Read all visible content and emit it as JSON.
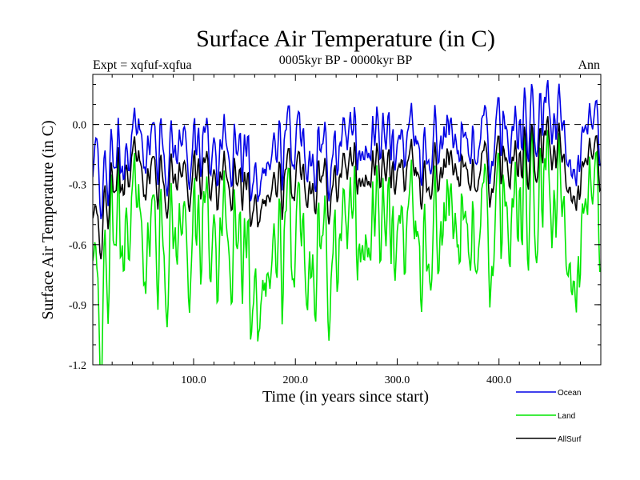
{
  "chart_data": {
    "type": "line",
    "title": "Surface Air Temperature (in C)",
    "subtitle_left": "Expt = xqfuf-xqfua",
    "subtitle_center": "0005kyr BP - 0000kyr BP",
    "subtitle_right": "Ann",
    "xlabel": "Time (in years since start)",
    "ylabel": "Surface Air Temperature (in C)",
    "xlim": [
      1,
      500
    ],
    "ylim": [
      -1.2,
      0.25
    ],
    "x_ticks": [
      100,
      200,
      300,
      400
    ],
    "x_tick_labels": [
      "100.0",
      "200.0",
      "300.0",
      "400.0"
    ],
    "y_ticks": [
      0.0,
      -0.3,
      -0.6,
      -0.9,
      -1.2
    ],
    "y_tick_labels": [
      "0.0",
      "-0.3",
      "-0.6",
      "-0.9",
      "-1.2"
    ],
    "reference_line": 0.0,
    "series": [
      {
        "name": "Land",
        "color": "#00e600",
        "anchors_x": [
          1,
          5,
          12,
          20,
          30,
          40,
          50,
          60,
          70,
          80,
          90,
          100,
          110,
          120,
          130,
          140,
          150,
          160,
          170,
          180,
          190,
          200,
          210,
          220,
          230,
          240,
          250,
          260,
          270,
          280,
          290,
          300,
          310,
          320,
          330,
          340,
          350,
          360,
          370,
          380,
          390,
          400,
          410,
          420,
          430,
          440,
          450,
          460,
          470,
          480,
          490,
          500
        ],
        "anchors_y": [
          -0.75,
          -0.95,
          -0.85,
          -0.6,
          -0.5,
          -0.45,
          -0.5,
          -0.55,
          -0.6,
          -0.5,
          -0.55,
          -0.6,
          -0.5,
          -0.55,
          -0.6,
          -0.55,
          -0.65,
          -0.7,
          -0.75,
          -0.7,
          -0.6,
          -0.55,
          -0.5,
          -0.55,
          -0.6,
          -0.55,
          -0.5,
          -0.45,
          -0.5,
          -0.55,
          -0.6,
          -0.5,
          -0.55,
          -0.6,
          -0.55,
          -0.5,
          -0.45,
          -0.5,
          -0.55,
          -0.6,
          -0.55,
          -0.5,
          -0.5,
          -0.45,
          -0.5,
          -0.4,
          -0.35,
          -0.45,
          -0.55,
          -0.6,
          -0.5,
          -0.45
        ]
      },
      {
        "name": "AllSurf",
        "color": "#000000",
        "anchors_x": [
          1,
          5,
          12,
          20,
          30,
          40,
          50,
          60,
          70,
          80,
          90,
          100,
          110,
          120,
          130,
          140,
          150,
          160,
          170,
          180,
          190,
          200,
          210,
          220,
          230,
          240,
          250,
          260,
          270,
          280,
          290,
          300,
          310,
          320,
          330,
          340,
          350,
          360,
          370,
          380,
          390,
          400,
          410,
          420,
          430,
          440,
          450,
          460,
          470,
          480,
          490,
          500
        ],
        "anchors_y": [
          -0.5,
          -0.55,
          -0.45,
          -0.35,
          -0.25,
          -0.2,
          -0.22,
          -0.25,
          -0.28,
          -0.24,
          -0.26,
          -0.28,
          -0.24,
          -0.27,
          -0.3,
          -0.27,
          -0.32,
          -0.34,
          -0.36,
          -0.33,
          -0.3,
          -0.26,
          -0.22,
          -0.25,
          -0.28,
          -0.26,
          -0.22,
          -0.2,
          -0.23,
          -0.25,
          -0.28,
          -0.22,
          -0.24,
          -0.27,
          -0.25,
          -0.22,
          -0.2,
          -0.22,
          -0.25,
          -0.27,
          -0.25,
          -0.22,
          -0.22,
          -0.2,
          -0.22,
          -0.15,
          -0.1,
          -0.18,
          -0.25,
          -0.28,
          -0.22,
          -0.2
        ]
      },
      {
        "name": "Ocean",
        "color": "#0000e6",
        "anchors_x": [
          1,
          5,
          12,
          20,
          30,
          40,
          50,
          60,
          70,
          80,
          90,
          100,
          110,
          120,
          130,
          140,
          150,
          160,
          170,
          180,
          190,
          200,
          210,
          220,
          230,
          240,
          250,
          260,
          270,
          280,
          290,
          300,
          310,
          320,
          330,
          340,
          350,
          360,
          370,
          380,
          390,
          400,
          410,
          420,
          430,
          440,
          450,
          460,
          470,
          480,
          490,
          500
        ],
        "anchors_y": [
          -0.3,
          -0.2,
          -0.3,
          -0.22,
          -0.15,
          -0.1,
          -0.05,
          -0.1,
          -0.12,
          -0.1,
          -0.1,
          -0.15,
          -0.1,
          -0.12,
          -0.15,
          -0.12,
          -0.15,
          -0.18,
          -0.2,
          -0.15,
          -0.12,
          -0.08,
          -0.05,
          -0.1,
          -0.12,
          -0.1,
          -0.06,
          -0.05,
          -0.08,
          -0.1,
          -0.12,
          -0.08,
          -0.1,
          -0.12,
          -0.1,
          -0.06,
          -0.05,
          -0.08,
          -0.1,
          -0.12,
          -0.1,
          -0.06,
          -0.08,
          -0.05,
          -0.06,
          0.0,
          0.05,
          -0.02,
          -0.1,
          -0.12,
          -0.08,
          -0.05
        ]
      }
    ],
    "legend": [
      {
        "name": "Ocean",
        "color": "#0000e6"
      },
      {
        "name": "Land",
        "color": "#00e600"
      },
      {
        "name": "AllSurf",
        "color": "#000000"
      }
    ],
    "legend_position": "bottom-right"
  }
}
